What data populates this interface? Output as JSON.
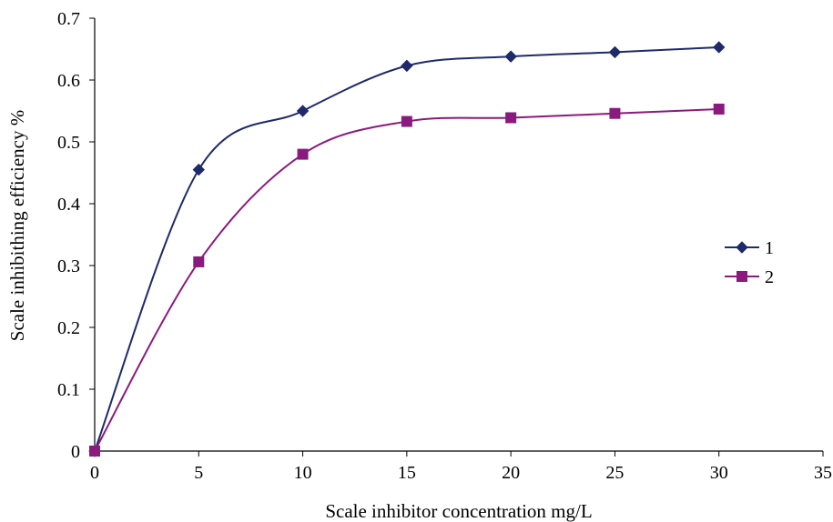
{
  "chart_data": {
    "type": "line",
    "title": "",
    "xlabel": "Scale inhibitor concentration mg/L",
    "ylabel": "Scale inhibithing efficiency %",
    "xlim": [
      0,
      35
    ],
    "ylim": [
      0,
      0.7
    ],
    "x_ticks": [
      "0",
      "5",
      "10",
      "15",
      "20",
      "25",
      "30",
      "35"
    ],
    "y_ticks": [
      "0",
      "0.1",
      "0.2",
      "0.3",
      "0.4",
      "0.5",
      "0.6",
      "0.7"
    ],
    "grid": false,
    "smooth": true,
    "legend_position": "right",
    "series": [
      {
        "name": "1",
        "color": "#1f2a6b",
        "marker": "diamond",
        "x": [
          0,
          5,
          10,
          15,
          20,
          25,
          30
        ],
        "y": [
          0,
          0.455,
          0.55,
          0.623,
          0.638,
          0.645,
          0.653
        ]
      },
      {
        "name": "2",
        "color": "#8b1a7e",
        "marker": "square",
        "x": [
          0,
          5,
          10,
          15,
          20,
          25,
          30
        ],
        "y": [
          0,
          0.306,
          0.48,
          0.533,
          0.539,
          0.546,
          0.553
        ]
      }
    ]
  }
}
